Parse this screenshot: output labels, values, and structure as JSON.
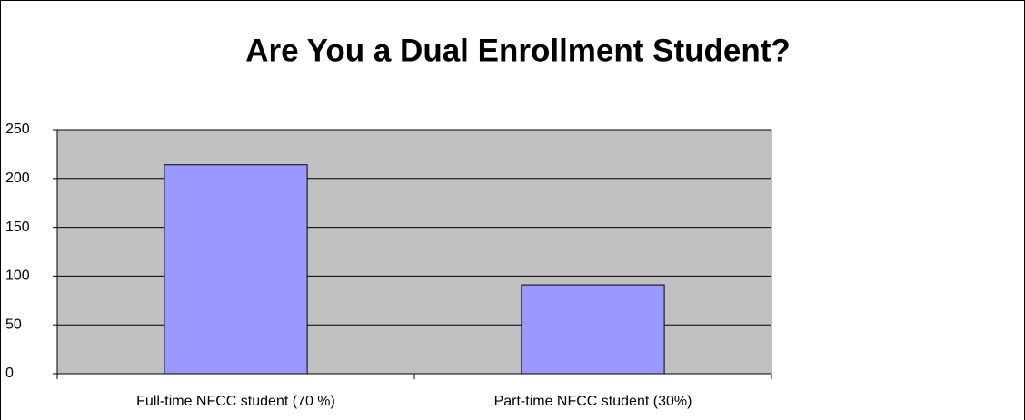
{
  "chart_data": {
    "type": "bar",
    "title": "Are You a Dual Enrollment Student?",
    "categories": [
      "Full-time NFCC student (70 %)",
      "Part-time NFCC student (30%)"
    ],
    "values": [
      214,
      91
    ],
    "color": "#9999ff",
    "ylim": [
      0,
      250
    ],
    "yticks": [
      0,
      50,
      100,
      150,
      200,
      250
    ],
    "grid": true
  }
}
